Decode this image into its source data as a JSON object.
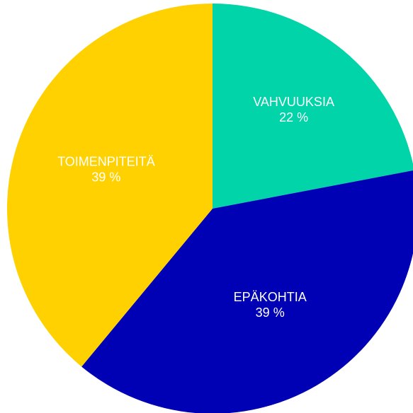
{
  "chart_data": {
    "type": "pie",
    "categories": [
      "VAHVUUKSIA",
      "EPÄKOHTIA",
      "TOIMENPITEITÄ"
    ],
    "values": [
      22,
      39,
      39
    ],
    "value_labels": [
      "22 %",
      "39 %",
      "39 %"
    ],
    "colors": [
      "#00d4a8",
      "#0000b4",
      "#ffd100"
    ]
  }
}
